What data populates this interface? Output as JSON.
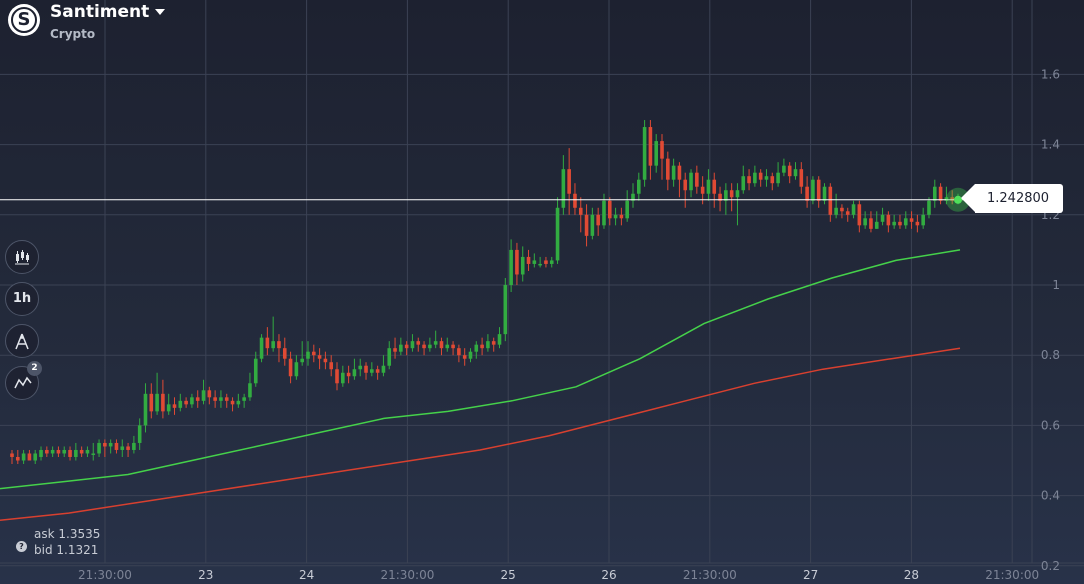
{
  "header": {
    "asset_name": "Santiment",
    "category": "Crypto",
    "logo_icon": "santiment-logo-icon",
    "dropdown_icon": "caret-down-icon"
  },
  "toolbar": {
    "chart_type_icon": "candles-icon",
    "timeframe_label": "1h",
    "drawing_icon": "drawing-tools-icon",
    "indicators_icon": "indicators-icon",
    "indicators_count": "2"
  },
  "quote": {
    "current_price_label": "1.242800",
    "ask_label": "ask",
    "ask_value": "1.3535",
    "bid_label": "bid",
    "bid_value": "1.1321",
    "help_icon": "help-icon"
  },
  "chart_data": {
    "type": "candlestick",
    "y_ticks": [
      "1.6",
      "1.4",
      "1.2",
      "1",
      "0.8",
      "0.6",
      "0.4",
      "0.2"
    ],
    "ylim": [
      0.18,
      1.75
    ],
    "x_ticks": [
      "21:30:00",
      "23",
      "24",
      "21:30:00",
      "25",
      "26",
      "21:30:00",
      "27",
      "28",
      "21:30:00"
    ],
    "current_price": 1.2428,
    "grid": true,
    "colors": {
      "up": "#32ac41",
      "down": "#e04a34",
      "ma_fast": "#45d14a",
      "ma_slow": "#d8402f",
      "grid": "#3b4254",
      "price_line": "#ffffff"
    },
    "candles": [
      [
        0.52,
        0.51,
        0.53,
        0.49
      ],
      [
        0.51,
        0.5,
        0.53,
        0.49
      ],
      [
        0.5,
        0.52,
        0.53,
        0.49
      ],
      [
        0.52,
        0.5,
        0.53,
        0.5
      ],
      [
        0.5,
        0.52,
        0.53,
        0.49
      ],
      [
        0.51,
        0.53,
        0.54,
        0.5
      ],
      [
        0.53,
        0.52,
        0.54,
        0.51
      ],
      [
        0.52,
        0.53,
        0.54,
        0.51
      ],
      [
        0.53,
        0.52,
        0.54,
        0.51
      ],
      [
        0.52,
        0.53,
        0.54,
        0.51
      ],
      [
        0.53,
        0.51,
        0.54,
        0.5
      ],
      [
        0.51,
        0.53,
        0.55,
        0.5
      ],
      [
        0.53,
        0.52,
        0.54,
        0.51
      ],
      [
        0.52,
        0.53,
        0.54,
        0.51
      ],
      [
        0.52,
        0.52,
        0.55,
        0.5
      ],
      [
        0.52,
        0.55,
        0.56,
        0.51
      ],
      [
        0.55,
        0.54,
        0.56,
        0.51
      ],
      [
        0.54,
        0.55,
        0.56,
        0.52
      ],
      [
        0.55,
        0.53,
        0.56,
        0.52
      ],
      [
        0.53,
        0.54,
        0.56,
        0.51
      ],
      [
        0.54,
        0.53,
        0.55,
        0.51
      ],
      [
        0.53,
        0.55,
        0.57,
        0.52
      ],
      [
        0.55,
        0.6,
        0.62,
        0.53
      ],
      [
        0.6,
        0.69,
        0.72,
        0.58
      ],
      [
        0.69,
        0.64,
        0.72,
        0.62
      ],
      [
        0.64,
        0.69,
        0.75,
        0.63
      ],
      [
        0.69,
        0.64,
        0.73,
        0.62
      ],
      [
        0.64,
        0.66,
        0.69,
        0.63
      ],
      [
        0.66,
        0.65,
        0.68,
        0.63
      ],
      [
        0.65,
        0.67,
        0.69,
        0.64
      ],
      [
        0.67,
        0.66,
        0.68,
        0.65
      ],
      [
        0.66,
        0.68,
        0.69,
        0.65
      ],
      [
        0.68,
        0.67,
        0.7,
        0.65
      ],
      [
        0.67,
        0.7,
        0.73,
        0.66
      ],
      [
        0.7,
        0.68,
        0.71,
        0.66
      ],
      [
        0.68,
        0.67,
        0.7,
        0.65
      ],
      [
        0.67,
        0.68,
        0.7,
        0.65
      ],
      [
        0.68,
        0.67,
        0.69,
        0.65
      ],
      [
        0.67,
        0.66,
        0.68,
        0.64
      ],
      [
        0.66,
        0.67,
        0.69,
        0.65
      ],
      [
        0.67,
        0.68,
        0.69,
        0.65
      ],
      [
        0.68,
        0.72,
        0.75,
        0.67
      ],
      [
        0.72,
        0.79,
        0.81,
        0.71
      ],
      [
        0.79,
        0.85,
        0.86,
        0.78
      ],
      [
        0.85,
        0.82,
        0.88,
        0.8
      ],
      [
        0.82,
        0.84,
        0.91,
        0.81
      ],
      [
        0.84,
        0.82,
        0.86,
        0.78
      ],
      [
        0.82,
        0.79,
        0.85,
        0.77
      ],
      [
        0.79,
        0.74,
        0.81,
        0.72
      ],
      [
        0.74,
        0.78,
        0.8,
        0.73
      ],
      [
        0.78,
        0.79,
        0.84,
        0.77
      ],
      [
        0.79,
        0.81,
        0.84,
        0.77
      ],
      [
        0.81,
        0.8,
        0.83,
        0.78
      ],
      [
        0.8,
        0.79,
        0.82,
        0.76
      ],
      [
        0.79,
        0.78,
        0.81,
        0.76
      ],
      [
        0.78,
        0.76,
        0.8,
        0.74
      ],
      [
        0.76,
        0.72,
        0.78,
        0.7
      ],
      [
        0.72,
        0.75,
        0.77,
        0.71
      ],
      [
        0.75,
        0.74,
        0.77,
        0.72
      ],
      [
        0.74,
        0.76,
        0.79,
        0.73
      ],
      [
        0.76,
        0.77,
        0.79,
        0.74
      ],
      [
        0.77,
        0.75,
        0.78,
        0.73
      ],
      [
        0.75,
        0.76,
        0.78,
        0.74
      ],
      [
        0.76,
        0.75,
        0.77,
        0.73
      ],
      [
        0.75,
        0.77,
        0.8,
        0.74
      ],
      [
        0.77,
        0.82,
        0.84,
        0.76
      ],
      [
        0.82,
        0.81,
        0.85,
        0.79
      ],
      [
        0.81,
        0.83,
        0.85,
        0.8
      ],
      [
        0.83,
        0.82,
        0.84,
        0.8
      ],
      [
        0.82,
        0.84,
        0.86,
        0.81
      ],
      [
        0.84,
        0.83,
        0.85,
        0.81
      ],
      [
        0.83,
        0.82,
        0.84,
        0.8
      ],
      [
        0.82,
        0.83,
        0.85,
        0.81
      ],
      [
        0.83,
        0.84,
        0.87,
        0.82
      ],
      [
        0.84,
        0.82,
        0.85,
        0.8
      ],
      [
        0.82,
        0.83,
        0.85,
        0.81
      ],
      [
        0.83,
        0.82,
        0.84,
        0.8
      ],
      [
        0.82,
        0.8,
        0.83,
        0.78
      ],
      [
        0.8,
        0.79,
        0.82,
        0.77
      ],
      [
        0.79,
        0.81,
        0.82,
        0.78
      ],
      [
        0.81,
        0.83,
        0.84,
        0.79
      ],
      [
        0.83,
        0.82,
        0.85,
        0.8
      ],
      [
        0.82,
        0.84,
        0.86,
        0.81
      ],
      [
        0.84,
        0.83,
        0.85,
        0.81
      ],
      [
        0.83,
        0.86,
        0.88,
        0.82
      ],
      [
        0.86,
        1.0,
        1.02,
        0.84
      ],
      [
        1.0,
        1.1,
        1.13,
        0.98
      ],
      [
        1.1,
        1.03,
        1.12,
        1.0
      ],
      [
        1.03,
        1.08,
        1.11,
        1.01
      ],
      [
        1.08,
        1.06,
        1.1,
        1.04
      ],
      [
        1.06,
        1.07,
        1.09,
        1.05
      ],
      [
        1.06,
        1.06,
        1.08,
        1.05
      ],
      [
        1.07,
        1.06,
        1.08,
        1.05
      ],
      [
        1.06,
        1.07,
        1.08,
        1.05
      ],
      [
        1.07,
        1.22,
        1.25,
        1.06
      ],
      [
        1.22,
        1.33,
        1.37,
        1.2
      ],
      [
        1.33,
        1.26,
        1.39,
        1.2
      ],
      [
        1.26,
        1.22,
        1.29,
        1.2
      ],
      [
        1.22,
        1.2,
        1.25,
        1.15
      ],
      [
        1.2,
        1.14,
        1.23,
        1.11
      ],
      [
        1.14,
        1.2,
        1.22,
        1.13
      ],
      [
        1.2,
        1.17,
        1.22,
        1.14
      ],
      [
        1.17,
        1.24,
        1.26,
        1.16
      ],
      [
        1.24,
        1.19,
        1.25,
        1.17
      ],
      [
        1.19,
        1.2,
        1.22,
        1.17
      ],
      [
        1.2,
        1.19,
        1.22,
        1.17
      ],
      [
        1.19,
        1.24,
        1.27,
        1.18
      ],
      [
        1.24,
        1.26,
        1.29,
        1.22
      ],
      [
        1.26,
        1.3,
        1.32,
        1.24
      ],
      [
        1.3,
        1.45,
        1.47,
        1.28
      ],
      [
        1.45,
        1.34,
        1.47,
        1.3
      ],
      [
        1.34,
        1.41,
        1.43,
        1.32
      ],
      [
        1.41,
        1.36,
        1.43,
        1.3
      ],
      [
        1.36,
        1.3,
        1.38,
        1.27
      ],
      [
        1.3,
        1.34,
        1.36,
        1.28
      ],
      [
        1.34,
        1.3,
        1.35,
        1.25
      ],
      [
        1.3,
        1.27,
        1.32,
        1.22
      ],
      [
        1.27,
        1.32,
        1.33,
        1.25
      ],
      [
        1.32,
        1.28,
        1.34,
        1.26
      ],
      [
        1.28,
        1.26,
        1.31,
        1.23
      ],
      [
        1.26,
        1.3,
        1.33,
        1.24
      ],
      [
        1.3,
        1.26,
        1.32,
        1.22
      ],
      [
        1.26,
        1.24,
        1.28,
        1.21
      ],
      [
        1.24,
        1.27,
        1.29,
        1.2
      ],
      [
        1.27,
        1.25,
        1.29,
        1.21
      ],
      [
        1.25,
        1.27,
        1.29,
        1.17
      ],
      [
        1.27,
        1.31,
        1.34,
        1.26
      ],
      [
        1.31,
        1.29,
        1.33,
        1.27
      ],
      [
        1.29,
        1.32,
        1.34,
        1.28
      ],
      [
        1.32,
        1.3,
        1.33,
        1.28
      ],
      [
        1.3,
        1.31,
        1.33,
        1.28
      ],
      [
        1.31,
        1.29,
        1.32,
        1.27
      ],
      [
        1.29,
        1.32,
        1.35,
        1.28
      ],
      [
        1.32,
        1.34,
        1.36,
        1.31
      ],
      [
        1.34,
        1.31,
        1.35,
        1.29
      ],
      [
        1.31,
        1.33,
        1.35,
        1.3
      ],
      [
        1.33,
        1.28,
        1.35,
        1.26
      ],
      [
        1.28,
        1.24,
        1.31,
        1.22
      ],
      [
        1.24,
        1.3,
        1.31,
        1.23
      ],
      [
        1.3,
        1.24,
        1.31,
        1.22
      ],
      [
        1.24,
        1.28,
        1.29,
        1.23
      ],
      [
        1.28,
        1.2,
        1.29,
        1.18
      ],
      [
        1.2,
        1.22,
        1.26,
        1.19
      ],
      [
        1.22,
        1.21,
        1.23,
        1.19
      ],
      [
        1.21,
        1.2,
        1.22,
        1.18
      ],
      [
        1.2,
        1.23,
        1.24,
        1.19
      ],
      [
        1.23,
        1.17,
        1.24,
        1.15
      ],
      [
        1.17,
        1.19,
        1.21,
        1.16
      ],
      [
        1.19,
        1.16,
        1.21,
        1.15
      ],
      [
        1.16,
        1.18,
        1.21,
        1.16
      ],
      [
        1.18,
        1.2,
        1.22,
        1.17
      ],
      [
        1.2,
        1.17,
        1.21,
        1.15
      ],
      [
        1.17,
        1.18,
        1.2,
        1.16
      ],
      [
        1.18,
        1.17,
        1.2,
        1.16
      ],
      [
        1.17,
        1.19,
        1.21,
        1.16
      ],
      [
        1.19,
        1.18,
        1.21,
        1.16
      ],
      [
        1.18,
        1.17,
        1.2,
        1.15
      ],
      [
        1.17,
        1.2,
        1.22,
        1.16
      ],
      [
        1.2,
        1.24,
        1.25,
        1.19
      ],
      [
        1.24,
        1.28,
        1.3,
        1.22
      ],
      [
        1.28,
        1.24,
        1.29,
        1.23
      ],
      [
        1.24,
        1.25,
        1.28,
        1.23
      ],
      [
        1.25,
        1.24,
        1.27,
        1.23
      ],
      [
        1.24,
        1.2428,
        1.26,
        1.23
      ]
    ],
    "ma_fast": [
      0.42,
      0.44,
      0.46,
      0.5,
      0.54,
      0.58,
      0.62,
      0.64,
      0.67,
      0.71,
      0.79,
      0.89,
      0.96,
      1.02,
      1.07,
      1.1
    ],
    "ma_slow": [
      0.33,
      0.35,
      0.38,
      0.41,
      0.44,
      0.47,
      0.5,
      0.53,
      0.57,
      0.62,
      0.67,
      0.72,
      0.76,
      0.79,
      0.82
    ]
  }
}
